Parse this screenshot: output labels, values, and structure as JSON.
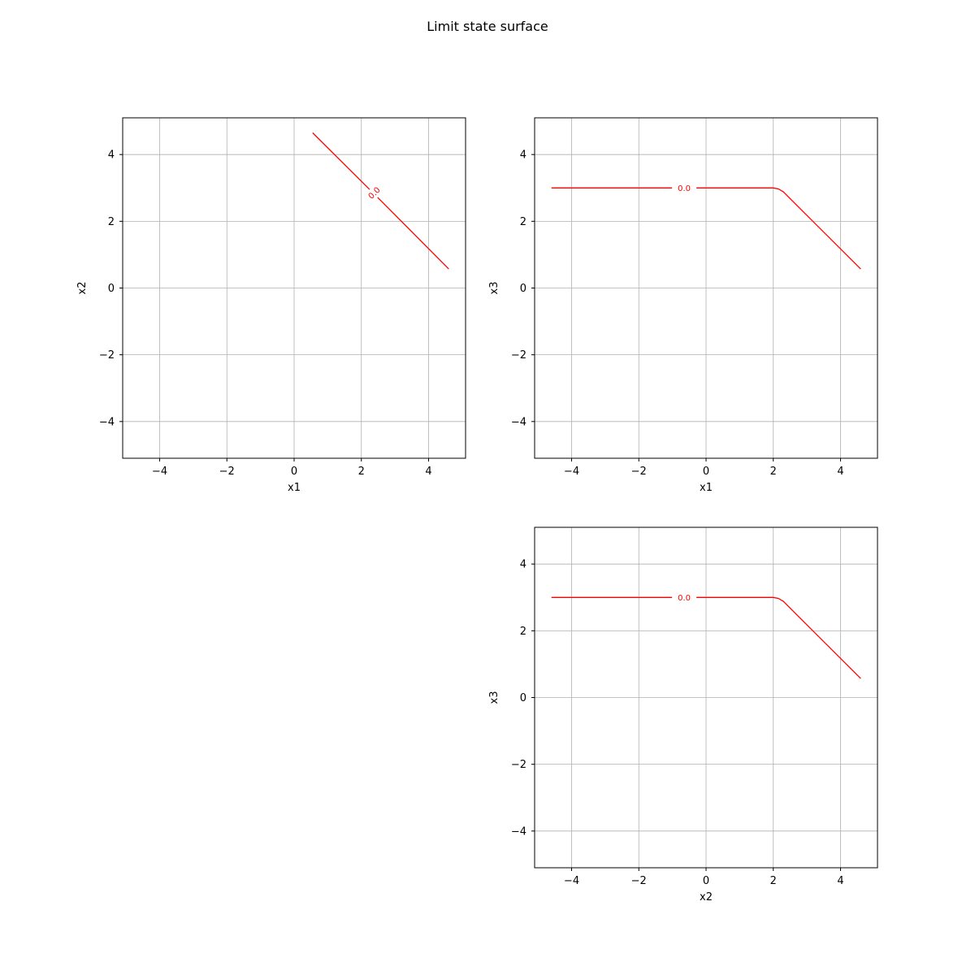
{
  "figure": {
    "title": "Limit state surface"
  },
  "colors": {
    "contour": "#ff0000",
    "grid": "#b0b0b0",
    "axes": "#000000"
  },
  "chart_data": [
    {
      "type": "line",
      "subplot": "top-left",
      "xlabel": "x1",
      "ylabel": "x2",
      "xlim": [
        -5.1,
        5.1
      ],
      "ylim": [
        -5.1,
        5.1
      ],
      "xticks": [
        -4,
        -2,
        0,
        2,
        4
      ],
      "yticks": [
        -4,
        -2,
        0,
        2,
        4
      ],
      "grid": true,
      "series": [
        {
          "x": [
            0.55,
            2.1,
            2.65,
            4.6
          ],
          "y": [
            4.65,
            3.1,
            2.55,
            0.57
          ],
          "contour_level_label": "0.0",
          "label_position": [
            2.38,
            2.85
          ],
          "label_angle": -45
        }
      ]
    },
    {
      "type": "line",
      "subplot": "top-right",
      "xlabel": "x1",
      "ylabel": "x3",
      "xlim": [
        -5.1,
        5.1
      ],
      "ylim": [
        -5.1,
        5.1
      ],
      "xticks": [
        -4,
        -2,
        0,
        2,
        4
      ],
      "yticks": [
        -4,
        -2,
        0,
        2,
        4
      ],
      "grid": true,
      "series": [
        {
          "x": [
            -4.6,
            -1.0,
            -0.3,
            2.0,
            2.15,
            2.3,
            4.6
          ],
          "y": [
            3.0,
            3.0,
            3.0,
            3.0,
            2.97,
            2.88,
            0.57
          ],
          "contour_level_label": "0.0",
          "label_position": [
            -0.65,
            3.0
          ],
          "label_angle": 0
        }
      ]
    },
    {
      "type": "line",
      "subplot": "bottom-right",
      "xlabel": "x2",
      "ylabel": "x3",
      "xlim": [
        -5.1,
        5.1
      ],
      "ylim": [
        -5.1,
        5.1
      ],
      "xticks": [
        -4,
        -2,
        0,
        2,
        4
      ],
      "yticks": [
        -4,
        -2,
        0,
        2,
        4
      ],
      "grid": true,
      "series": [
        {
          "x": [
            -4.6,
            -1.0,
            -0.3,
            2.0,
            2.15,
            2.3,
            4.6
          ],
          "y": [
            3.0,
            3.0,
            3.0,
            3.0,
            2.97,
            2.88,
            0.57
          ],
          "contour_level_label": "0.0",
          "label_position": [
            -0.65,
            3.0
          ],
          "label_angle": 0
        }
      ]
    }
  ]
}
